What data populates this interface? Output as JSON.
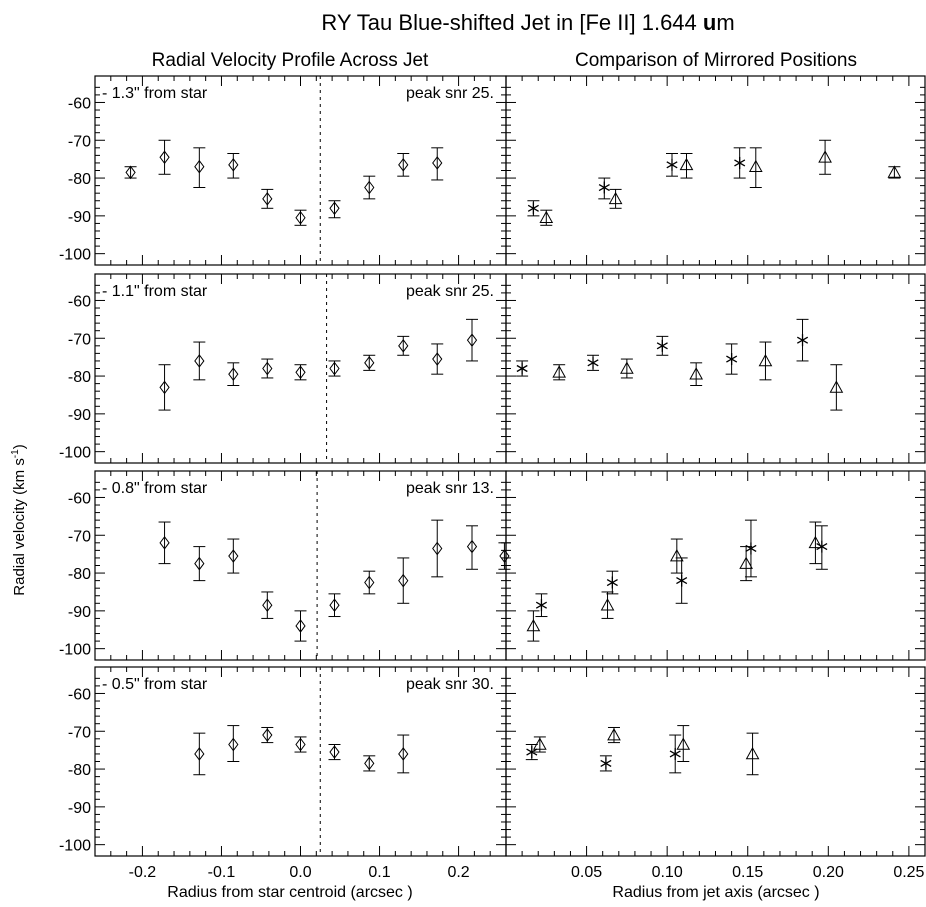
{
  "title_prefix": "RY Tau Blue-shifted Jet in [Fe II] 1.644 ",
  "title_bold": "u",
  "title_suffix": "m",
  "left_column_title": "Radial Velocity Profile Across Jet",
  "right_column_title": "Comparison of Mirrored Positions",
  "ylabel_main": "Radial velocity (km s",
  "ylabel_sup": "-1",
  "ylabel_end": ")",
  "xlabel_left": "Radius from star centroid (arcsec )",
  "xlabel_right": "Radius from jet axis (arcsec )",
  "chart_data": {
    "type": "scatter",
    "ylim": [
      -103,
      -53
    ],
    "yticks": [
      -60,
      -70,
      -80,
      -90,
      -100
    ],
    "ytick_labels": [
      "-60",
      "-70",
      "-80",
      "-90",
      "-100"
    ],
    "left_xlim": [
      -0.26,
      0.26
    ],
    "left_xticks": [
      -0.2,
      -0.1,
      0.0,
      0.1,
      0.2
    ],
    "left_xtick_labels": [
      "-0.2",
      "-0.1",
      "0.0",
      "0.1",
      "0.2"
    ],
    "right_xlim": [
      0.0,
      0.26
    ],
    "right_xticks": [
      0.05,
      0.1,
      0.15,
      0.2,
      0.25
    ],
    "right_xtick_labels": [
      "0.05",
      "0.10",
      "0.15",
      "0.20",
      "0.25"
    ],
    "panels": [
      {
        "label": "-  1.3\" from star",
        "snr_label": "peak snr  25.",
        "axis_x": 0.025,
        "profile": [
          {
            "x": -0.215,
            "y": -78.5,
            "lo": -80.0,
            "hi": -77.0
          },
          {
            "x": -0.172,
            "y": -74.5,
            "lo": -79.0,
            "hi": -70.0
          },
          {
            "x": -0.128,
            "y": -77.0,
            "lo": -82.5,
            "hi": -72.0
          },
          {
            "x": -0.085,
            "y": -76.5,
            "lo": -80.0,
            "hi": -73.5
          },
          {
            "x": -0.042,
            "y": -85.5,
            "lo": -88.0,
            "hi": -83.0
          },
          {
            "x": 0.0,
            "y": -90.5,
            "lo": -92.5,
            "hi": -88.5
          },
          {
            "x": 0.043,
            "y": -88.0,
            "lo": -90.5,
            "hi": -86.0
          },
          {
            "x": 0.087,
            "y": -82.5,
            "lo": -85.5,
            "hi": -79.5
          },
          {
            "x": 0.13,
            "y": -76.5,
            "lo": -79.5,
            "hi": -73.5
          },
          {
            "x": 0.173,
            "y": -76.0,
            "lo": -80.5,
            "hi": -72.0
          }
        ],
        "stars": [
          {
            "x": 0.017,
            "y": -88.0,
            "lo": -90.0,
            "hi": -86.0
          },
          {
            "x": 0.061,
            "y": -82.5,
            "lo": -85.5,
            "hi": -80.0
          },
          {
            "x": 0.103,
            "y": -76.5,
            "lo": -79.5,
            "hi": -73.5
          },
          {
            "x": 0.145,
            "y": -76.0,
            "lo": -80.0,
            "hi": -72.0
          }
        ],
        "triangles": [
          {
            "x": 0.025,
            "y": -90.5,
            "lo": -92.5,
            "hi": -88.5
          },
          {
            "x": 0.068,
            "y": -85.5,
            "lo": -88.0,
            "hi": -83.0
          },
          {
            "x": 0.112,
            "y": -76.5,
            "lo": -80.0,
            "hi": -73.5
          },
          {
            "x": 0.155,
            "y": -77.0,
            "lo": -82.5,
            "hi": -72.0
          },
          {
            "x": 0.198,
            "y": -74.5,
            "lo": -79.0,
            "hi": -70.0
          },
          {
            "x": 0.241,
            "y": -78.5,
            "lo": -80.0,
            "hi": -77.0
          }
        ]
      },
      {
        "label": "-  1.1\" from star",
        "snr_label": "peak snr  25.",
        "axis_x": 0.033,
        "profile": [
          {
            "x": -0.172,
            "y": -83.0,
            "lo": -89.0,
            "hi": -77.0
          },
          {
            "x": -0.128,
            "y": -76.0,
            "lo": -81.0,
            "hi": -71.0
          },
          {
            "x": -0.085,
            "y": -79.5,
            "lo": -82.5,
            "hi": -76.5
          },
          {
            "x": -0.042,
            "y": -78.0,
            "lo": -80.5,
            "hi": -75.5
          },
          {
            "x": 0.0,
            "y": -79.0,
            "lo": -81.0,
            "hi": -77.0
          },
          {
            "x": 0.043,
            "y": -78.0,
            "lo": -80.0,
            "hi": -76.0
          },
          {
            "x": 0.087,
            "y": -76.5,
            "lo": -78.5,
            "hi": -74.5
          },
          {
            "x": 0.13,
            "y": -72.0,
            "lo": -74.5,
            "hi": -69.5
          },
          {
            "x": 0.173,
            "y": -75.5,
            "lo": -79.5,
            "hi": -71.5
          },
          {
            "x": 0.217,
            "y": -70.5,
            "lo": -76.0,
            "hi": -65.0
          }
        ],
        "stars": [
          {
            "x": 0.01,
            "y": -78.0,
            "lo": -80.0,
            "hi": -76.0
          },
          {
            "x": 0.054,
            "y": -76.5,
            "lo": -78.5,
            "hi": -74.5
          },
          {
            "x": 0.097,
            "y": -72.0,
            "lo": -74.5,
            "hi": -69.5
          },
          {
            "x": 0.14,
            "y": -75.5,
            "lo": -79.5,
            "hi": -71.5
          },
          {
            "x": 0.184,
            "y": -70.5,
            "lo": -76.0,
            "hi": -65.0
          }
        ],
        "triangles": [
          {
            "x": 0.033,
            "y": -79.0,
            "lo": -81.0,
            "hi": -77.0
          },
          {
            "x": 0.075,
            "y": -78.0,
            "lo": -80.5,
            "hi": -75.5
          },
          {
            "x": 0.118,
            "y": -79.5,
            "lo": -82.5,
            "hi": -76.5
          },
          {
            "x": 0.161,
            "y": -76.0,
            "lo": -81.0,
            "hi": -71.0
          },
          {
            "x": 0.205,
            "y": -83.0,
            "lo": -89.0,
            "hi": -77.0
          }
        ]
      },
      {
        "label": "-  0.8\" from star",
        "snr_label": "peak snr  13.",
        "axis_x": 0.021,
        "profile": [
          {
            "x": -0.172,
            "y": -72.0,
            "lo": -77.5,
            "hi": -66.5
          },
          {
            "x": -0.128,
            "y": -77.5,
            "lo": -82.0,
            "hi": -73.0
          },
          {
            "x": -0.085,
            "y": -75.5,
            "lo": -80.0,
            "hi": -71.0
          },
          {
            "x": -0.042,
            "y": -88.5,
            "lo": -92.0,
            "hi": -85.0
          },
          {
            "x": 0.0,
            "y": -94.0,
            "lo": -98.0,
            "hi": -90.0
          },
          {
            "x": 0.043,
            "y": -88.5,
            "lo": -91.5,
            "hi": -85.5
          },
          {
            "x": 0.087,
            "y": -82.5,
            "lo": -85.5,
            "hi": -79.5
          },
          {
            "x": 0.13,
            "y": -82.0,
            "lo": -88.0,
            "hi": -76.0
          },
          {
            "x": 0.173,
            "y": -73.5,
            "lo": -81.0,
            "hi": -66.0
          },
          {
            "x": 0.217,
            "y": -73.0,
            "lo": -79.0,
            "hi": -67.5
          },
          {
            "x": 0.258,
            "y": -75.5,
            "lo": -79.0,
            "hi": -72.0
          }
        ],
        "stars": [
          {
            "x": 0.022,
            "y": -88.5,
            "lo": -91.5,
            "hi": -85.5
          },
          {
            "x": 0.066,
            "y": -82.5,
            "lo": -85.5,
            "hi": -79.5
          },
          {
            "x": 0.109,
            "y": -82.0,
            "lo": -88.0,
            "hi": -76.0
          },
          {
            "x": 0.152,
            "y": -73.5,
            "lo": -81.0,
            "hi": -66.0
          },
          {
            "x": 0.196,
            "y": -73.0,
            "lo": -79.0,
            "hi": -67.5
          }
        ],
        "triangles": [
          {
            "x": 0.017,
            "y": -94.0,
            "lo": -98.0,
            "hi": -90.0
          },
          {
            "x": 0.063,
            "y": -88.5,
            "lo": -92.0,
            "hi": -85.0
          },
          {
            "x": 0.106,
            "y": -75.5,
            "lo": -80.0,
            "hi": -71.0
          },
          {
            "x": 0.149,
            "y": -77.5,
            "lo": -82.0,
            "hi": -73.0
          },
          {
            "x": 0.192,
            "y": -72.0,
            "lo": -77.5,
            "hi": -66.5
          }
        ]
      },
      {
        "label": "-  0.5\" from star",
        "snr_label": "peak snr  30.",
        "axis_x": 0.025,
        "profile": [
          {
            "x": -0.128,
            "y": -76.0,
            "lo": -81.5,
            "hi": -70.5
          },
          {
            "x": -0.085,
            "y": -73.5,
            "lo": -78.0,
            "hi": -68.5
          },
          {
            "x": -0.042,
            "y": -71.0,
            "lo": -73.0,
            "hi": -69.0
          },
          {
            "x": 0.0,
            "y": -73.5,
            "lo": -75.5,
            "hi": -71.5
          },
          {
            "x": 0.043,
            "y": -75.5,
            "lo": -77.5,
            "hi": -73.5
          },
          {
            "x": 0.087,
            "y": -78.5,
            "lo": -80.5,
            "hi": -76.5
          },
          {
            "x": 0.13,
            "y": -76.0,
            "lo": -81.0,
            "hi": -71.0
          }
        ],
        "stars": [
          {
            "x": 0.016,
            "y": -75.5,
            "lo": -77.5,
            "hi": -73.5
          },
          {
            "x": 0.062,
            "y": -78.5,
            "lo": -80.5,
            "hi": -76.5
          },
          {
            "x": 0.105,
            "y": -76.0,
            "lo": -81.0,
            "hi": -71.0
          }
        ],
        "triangles": [
          {
            "x": 0.021,
            "y": -73.5,
            "lo": -75.5,
            "hi": -71.5
          },
          {
            "x": 0.067,
            "y": -71.0,
            "lo": -73.0,
            "hi": -69.0
          },
          {
            "x": 0.11,
            "y": -73.5,
            "lo": -78.0,
            "hi": -68.5
          },
          {
            "x": 0.153,
            "y": -76.0,
            "lo": -81.5,
            "hi": -70.5
          }
        ]
      }
    ]
  }
}
